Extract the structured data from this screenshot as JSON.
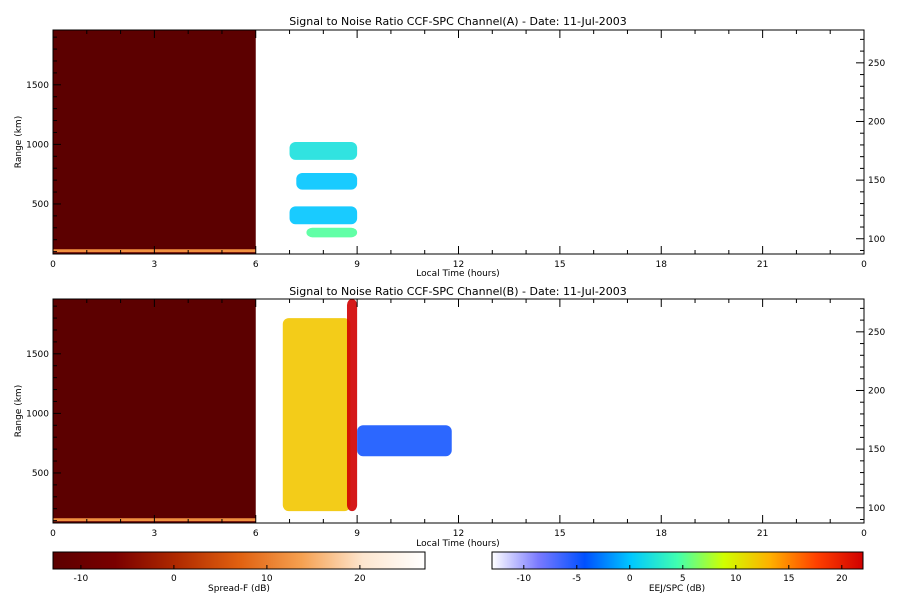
{
  "chart_data": [
    {
      "type": "heatmap",
      "title": "Signal to Noise Ratio CCF-SPC Channel(A) - Date: 11-Jul-2003",
      "xlabel": "Local Time (hours)",
      "ylabel": "Range (km)",
      "x_ticks": [
        "0",
        "3",
        "6",
        "9",
        "12",
        "15",
        "18",
        "21",
        "0"
      ],
      "xlim": [
        0,
        24
      ],
      "y_ticks": [
        "500",
        "1000",
        "1500"
      ],
      "ylim": [
        80,
        1960
      ],
      "y2_ticks": [
        "100",
        "150",
        "200",
        "250"
      ],
      "y2lim": [
        87,
        278
      ],
      "regions": [
        {
          "x": [
            0,
            6
          ],
          "y": [
            80,
            1960
          ],
          "scale": "Spread-F",
          "value_db": -13
        },
        {
          "x": [
            0,
            6
          ],
          "y": [
            95,
            120
          ],
          "scale": "Spread-F",
          "value_db": 12
        },
        {
          "x": [
            7,
            9
          ],
          "y": [
            870,
            1020
          ],
          "scale": "EEJ/SPC",
          "value_db": 2
        },
        {
          "x": [
            7.2,
            9
          ],
          "y": [
            620,
            760
          ],
          "scale": "EEJ/SPC",
          "value_db": 0
        },
        {
          "x": [
            7,
            9
          ],
          "y": [
            330,
            480
          ],
          "scale": "EEJ/SPC",
          "value_db": 0
        },
        {
          "x": [
            7.5,
            9
          ],
          "y": [
            220,
            300
          ],
          "scale": "EEJ/SPC",
          "value_db": 5
        }
      ]
    },
    {
      "type": "heatmap",
      "title": "Signal to Noise Ratio CCF-SPC Channel(B) - Date: 11-Jul-2003",
      "xlabel": "Local Time (hours)",
      "ylabel": "Range (km)",
      "x_ticks": [
        "0",
        "3",
        "6",
        "9",
        "12",
        "15",
        "18",
        "21",
        "0"
      ],
      "xlim": [
        0,
        24
      ],
      "y_ticks": [
        "500",
        "1000",
        "1500"
      ],
      "ylim": [
        80,
        1960
      ],
      "y2_ticks": [
        "100",
        "150",
        "200",
        "250"
      ],
      "y2lim": [
        87,
        278
      ],
      "regions": [
        {
          "x": [
            0,
            6
          ],
          "y": [
            80,
            1960
          ],
          "scale": "Spread-F",
          "value_db": -13
        },
        {
          "x": [
            0,
            6
          ],
          "y": [
            95,
            120
          ],
          "scale": "Spread-F",
          "value_db": 12
        },
        {
          "x": [
            6.8,
            8.8
          ],
          "y": [
            180,
            1800
          ],
          "scale": "EEJ/SPC",
          "value_db": 12
        },
        {
          "x": [
            8.7,
            9
          ],
          "y": [
            180,
            1960
          ],
          "scale": "EEJ/SPC",
          "value_db": 22
        },
        {
          "x": [
            9,
            11.8
          ],
          "y": [
            640,
            900
          ],
          "scale": "EEJ/SPC",
          "value_db": -5
        }
      ]
    }
  ],
  "colorbars": [
    {
      "label": "Spread-F (dB)",
      "range": [
        -13,
        27
      ],
      "ticks": [
        "-10",
        "0",
        "10",
        "20"
      ],
      "colors": [
        "#5c0000",
        "#7a0000",
        "#b02a00",
        "#e06010",
        "#f5a050",
        "#fde6cf",
        "#ffffff"
      ]
    },
    {
      "label": "EEJ/SPC (dB)",
      "range": [
        -13,
        22
      ],
      "ticks": [
        "-10",
        "-5",
        "0",
        "5",
        "10",
        "15",
        "20"
      ],
      "colors": [
        "#ffffff",
        "#7a7aff",
        "#0050ff",
        "#00c8ff",
        "#40ffb0",
        "#d0ff00",
        "#ffb000",
        "#ff4000",
        "#d00000"
      ]
    }
  ]
}
